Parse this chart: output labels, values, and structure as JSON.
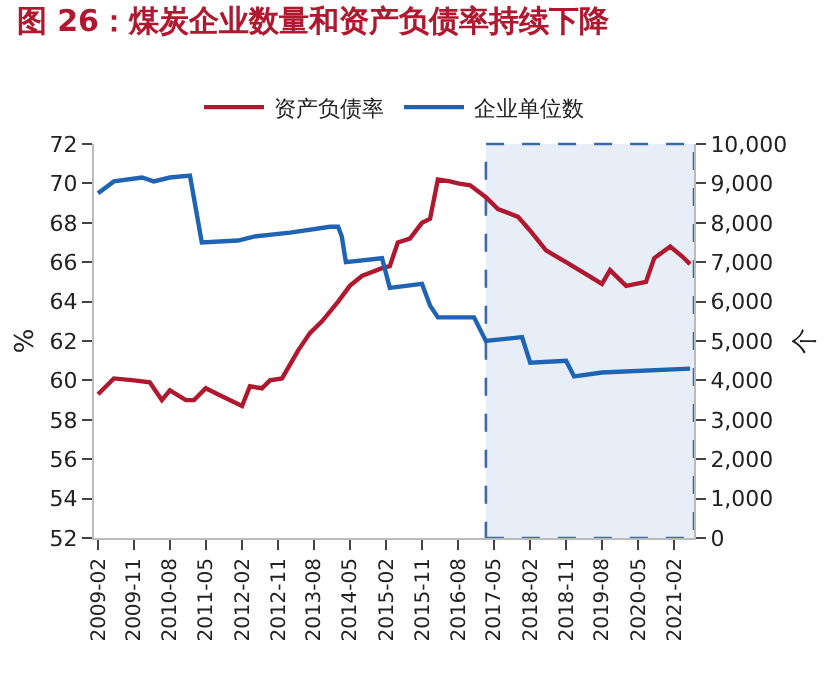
{
  "chart_data": {
    "type": "line",
    "title": "图 26：煤炭企业数量和资产负债率持续下降",
    "ylabel": "%",
    "y2label": "个",
    "xlim": [
      "2009-01",
      "2021-07"
    ],
    "xticks": [
      {
        "value": "2009-02",
        "label": "2009-02"
      },
      {
        "value": "2009-11",
        "label": "2009-11"
      },
      {
        "value": "2010-08",
        "label": "2010-08"
      },
      {
        "value": "2011-05",
        "label": "2011-05"
      },
      {
        "value": "2012-02",
        "label": "2012-02"
      },
      {
        "value": "2012-11",
        "label": "2012-11"
      },
      {
        "value": "2013-08",
        "label": "2013-08"
      },
      {
        "value": "2014-05",
        "label": "2014-05"
      },
      {
        "value": "2015-02",
        "label": "2015-02"
      },
      {
        "value": "2015-11",
        "label": "2015-11"
      },
      {
        "value": "2016-08",
        "label": "2016-08"
      },
      {
        "value": "2017-05",
        "label": "2017-05"
      },
      {
        "value": "2018-02",
        "label": "2018-02"
      },
      {
        "value": "2018-11",
        "label": "2018-11"
      },
      {
        "value": "2019-08",
        "label": "2019-08"
      },
      {
        "value": "2020-05",
        "label": "2020-05"
      },
      {
        "value": "2021-02",
        "label": "2021-02"
      }
    ],
    "ylim": [
      52,
      72
    ],
    "yticks": [
      52,
      54,
      56,
      58,
      60,
      62,
      64,
      66,
      68,
      70,
      72
    ],
    "y2lim": [
      0,
      10000
    ],
    "y2ticks": [
      {
        "value": 0,
        "label": "0"
      },
      {
        "value": 1000,
        "label": "1,000"
      },
      {
        "value": 2000,
        "label": "2,000"
      },
      {
        "value": 3000,
        "label": "3,000"
      },
      {
        "value": 4000,
        "label": "4,000"
      },
      {
        "value": 5000,
        "label": "5,000"
      },
      {
        "value": 6000,
        "label": "6,000"
      },
      {
        "value": 7000,
        "label": "7,000"
      },
      {
        "value": 8000,
        "label": "8,000"
      },
      {
        "value": 9000,
        "label": "9,000"
      },
      {
        "value": 10000,
        "label": "10,000"
      }
    ],
    "legend": "top",
    "grid": false,
    "marker": "none",
    "line_style": "solid",
    "bands": [
      {
        "axis": "x",
        "from": "2017-03",
        "to": "2021-07",
        "color": "#e8eef7"
      }
    ],
    "series": [
      {
        "name": "资产负债率",
        "color": "#b0182f",
        "x": [
          "2009-02",
          "2009-06",
          "2009-11",
          "2010-03",
          "2010-06",
          "2010-08",
          "2010-12",
          "2011-02",
          "2011-05",
          "2011-09",
          "2012-02",
          "2012-04",
          "2012-07",
          "2012-09",
          "2012-12",
          "2013-04",
          "2013-07",
          "2013-10",
          "2014-02",
          "2014-05",
          "2014-08",
          "2015-01",
          "2015-03",
          "2015-05",
          "2015-08",
          "2015-11",
          "2016-01",
          "2016-03",
          "2016-06",
          "2016-08",
          "2016-11",
          "2017-03",
          "2017-06",
          "2017-11",
          "2018-02",
          "2018-06",
          "2018-11",
          "2019-04",
          "2019-08",
          "2019-10",
          "2020-02",
          "2020-07",
          "2020-09",
          "2021-01",
          "2021-04",
          "2021-06"
        ],
        "values": [
          59.3,
          60.1,
          60.0,
          59.9,
          59.0,
          59.5,
          59.0,
          59.0,
          59.6,
          59.2,
          58.7,
          59.7,
          59.6,
          60.0,
          60.1,
          61.5,
          62.4,
          63.0,
          64.0,
          64.8,
          65.3,
          65.7,
          65.8,
          67.0,
          67.2,
          68.0,
          68.2,
          70.2,
          70.1,
          70.0,
          69.9,
          69.3,
          68.7,
          68.3,
          67.6,
          66.6,
          66.0,
          65.4,
          64.9,
          65.6,
          64.8,
          65.0,
          66.2,
          66.8,
          66.3,
          65.9
        ]
      },
      {
        "name": "企业单位数",
        "color": "#1f64b4",
        "axis": "y2",
        "x": [
          "2009-02",
          "2009-06",
          "2010-01",
          "2010-04",
          "2010-08",
          "2011-01",
          "2011-04",
          "2012-01",
          "2012-05",
          "2013-02",
          "2013-12",
          "2014-02",
          "2014-03",
          "2014-04",
          "2015-01",
          "2015-03",
          "2015-11",
          "2016-01",
          "2016-03",
          "2016-12",
          "2017-03",
          "2017-12",
          "2018-02",
          "2018-11",
          "2019-01",
          "2019-08",
          "2021-06"
        ],
        "values": [
          8750,
          9050,
          9150,
          9050,
          9150,
          9200,
          7500,
          7550,
          7650,
          7750,
          7900,
          7900,
          7650,
          7000,
          7100,
          6350,
          6450,
          5900,
          5600,
          5600,
          5000,
          5100,
          4450,
          4500,
          4100,
          4200,
          4300
        ]
      }
    ]
  }
}
